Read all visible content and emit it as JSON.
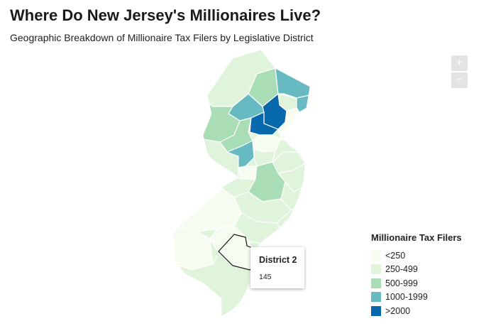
{
  "header": {
    "title": "Where Do New Jersey's Millionaires Live?",
    "subtitle": "Geographic Breakdown of Millionaire Tax Filers by Legislative District"
  },
  "zoom": {
    "in_label": "+",
    "out_label": "−"
  },
  "tooltip": {
    "district": "District 2",
    "value": "145"
  },
  "legend": {
    "title": "Millionaire Tax Filers",
    "items": [
      {
        "label": "<250",
        "color": "#f7fcf0"
      },
      {
        "label": "250-499",
        "color": "#e0f3db"
      },
      {
        "label": "500-999",
        "color": "#a8ddb5"
      },
      {
        "label": "1000-1999",
        "color": "#67b9c2"
      },
      {
        "label": ">2000",
        "color": "#0868ac"
      }
    ]
  }
}
